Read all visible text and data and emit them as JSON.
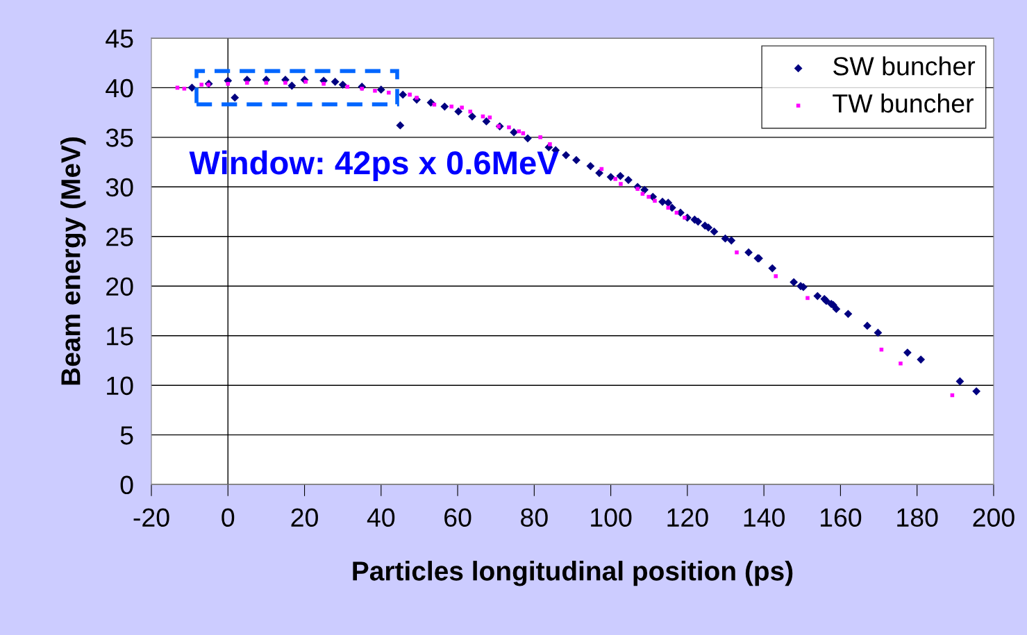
{
  "chart_data": {
    "type": "scatter",
    "xlabel": "Particles longitudinal position (ps)",
    "ylabel": "Beam energy (MeV)",
    "xlim": [
      -20,
      200
    ],
    "xticks": [
      -20,
      0,
      20,
      40,
      60,
      80,
      100,
      120,
      140,
      160,
      180,
      200
    ],
    "ylim": [
      0,
      45
    ],
    "yticks": [
      0,
      5,
      10,
      15,
      20,
      25,
      30,
      35,
      40,
      45
    ],
    "grid": "y",
    "legend": "top right",
    "ref_lines": [
      {
        "axis": "x",
        "value": 0,
        "color": "#000000"
      }
    ],
    "annotations": [
      {
        "text": "Window: 42ps x 0.6MeV",
        "x": 18,
        "y": 40
      }
    ],
    "series": [
      {
        "name": "SW buncher",
        "color": "#000080",
        "marker": "diamond",
        "x": [
          -9.4,
          1.8,
          45,
          -5,
          0,
          5,
          10,
          15,
          16.7,
          20,
          25,
          28,
          30,
          35,
          40,
          45.7,
          49.3,
          53,
          56.6,
          60.2,
          63.8,
          67.5,
          71,
          74.7,
          78.3,
          83.8,
          85.6,
          88.3,
          91,
          94.7,
          97,
          100,
          102.5,
          104.6,
          107,
          108.8,
          111,
          113.5,
          115,
          116,
          118.2,
          120,
          121.9,
          122.8,
          124.6,
          125.5,
          127,
          129.9,
          131.5,
          136,
          138.4,
          138.7,
          142.2,
          147.8,
          149.6,
          150.3,
          154,
          155.8,
          156.3,
          157.6,
          158.1,
          158.9,
          162,
          167,
          169.8,
          177.5,
          181,
          191.2,
          195.5
        ],
        "values": [
          40.0,
          39.0,
          36.2,
          40.4,
          40.7,
          40.8,
          40.8,
          40.8,
          40.2,
          40.8,
          40.7,
          40.6,
          40.3,
          40.1,
          39.8,
          39.3,
          38.8,
          38.5,
          38.1,
          37.6,
          37.1,
          36.6,
          36.1,
          35.5,
          34.9,
          34.0,
          33.7,
          33.2,
          32.7,
          32.1,
          31.4,
          31.0,
          31.1,
          30.7,
          30.0,
          29.7,
          29.0,
          28.5,
          28.4,
          27.9,
          27.4,
          26.9,
          26.7,
          26.5,
          26.1,
          25.9,
          25.5,
          24.8,
          24.6,
          23.4,
          22.8,
          22.8,
          21.8,
          20.4,
          20.0,
          19.9,
          19.0,
          18.7,
          18.5,
          18.2,
          18.1,
          17.7,
          17.2,
          16.0,
          15.3,
          13.3,
          12.6,
          10.4,
          9.4
        ]
      },
      {
        "name": "TW buncher",
        "color": "#ff00ff",
        "marker": "square",
        "x": [
          -13.2,
          -11.4,
          -6.9,
          -5.1,
          0,
          5,
          10,
          15,
          20.3,
          25,
          31.2,
          35,
          38.4,
          42,
          47.5,
          49.3,
          53.9,
          58.4,
          61.1,
          63.3,
          66.6,
          68.4,
          70.7,
          73.4,
          76,
          77.1,
          81.6,
          84.1,
          97.6,
          101.2,
          102.6,
          107,
          108.3,
          109.9,
          111.5,
          115,
          117.2,
          119.3,
          132.9,
          143.1,
          151.4,
          170.7,
          175.7,
          189.2
        ],
        "values": [
          40.0,
          39.9,
          40.3,
          40.3,
          40.4,
          40.5,
          40.5,
          40.5,
          40.6,
          40.4,
          40.1,
          39.9,
          39.7,
          39.5,
          39.3,
          39.0,
          38.3,
          38.1,
          38.0,
          37.6,
          37.1,
          37.0,
          36.1,
          36.0,
          35.6,
          35.4,
          35.0,
          34.3,
          31.8,
          30.8,
          30.3,
          29.8,
          29.3,
          29.0,
          28.6,
          27.9,
          27.4,
          26.9,
          23.4,
          21.0,
          18.8,
          13.6,
          12.2,
          9.0
        ]
      }
    ]
  }
}
